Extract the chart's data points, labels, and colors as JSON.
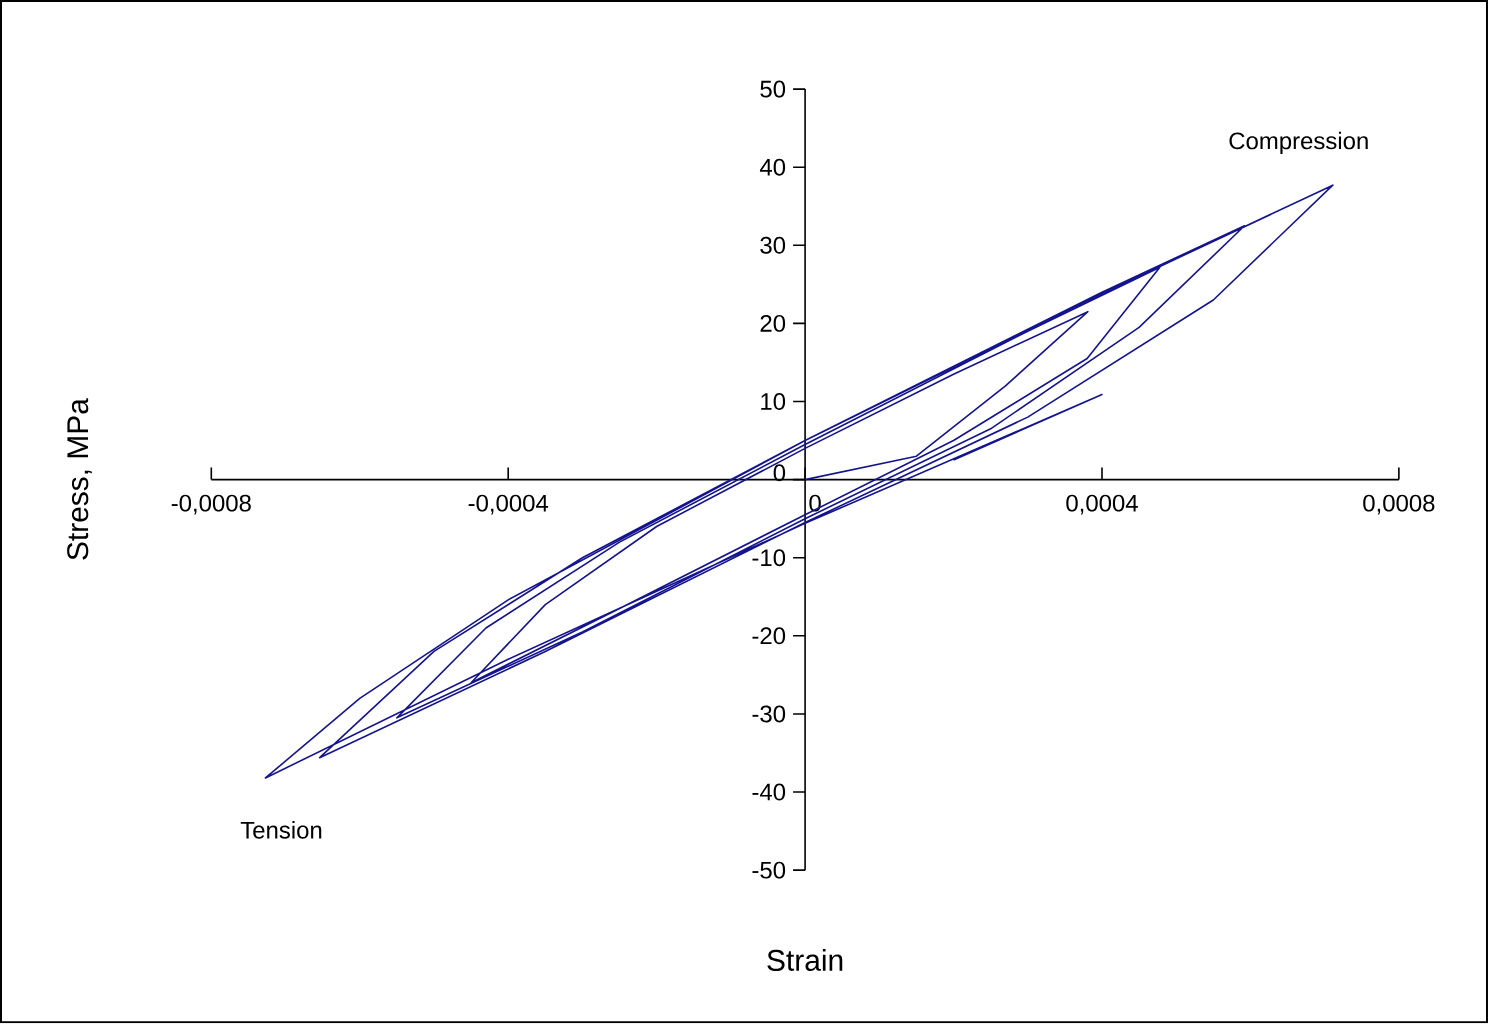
{
  "chart_data": {
    "type": "line",
    "xlabel": "Strain",
    "ylabel": "Stress, MPa",
    "xlim": [
      -0.0008,
      0.0008
    ],
    "ylim": [
      -50,
      50
    ],
    "xticks": [
      {
        "value": -0.0008,
        "label": "-0,0008"
      },
      {
        "value": -0.0004,
        "label": "-0,0004"
      },
      0,
      {
        "value": 0.0004,
        "label": "0,0004"
      },
      {
        "value": 0.0008,
        "label": "0,0008"
      }
    ],
    "yticks": [
      -50,
      -40,
      -30,
      -20,
      -10,
      0,
      10,
      20,
      30,
      40,
      50
    ],
    "marker": "none",
    "annotations": [
      {
        "text": "Compression",
        "x": 0.000711,
        "y": 37.7
      },
      {
        "text": "Tension",
        "x": -0.000727,
        "y": -38.2
      }
    ],
    "series": [
      {
        "color": "#141490",
        "x": [
          0,
          0.00015,
          0.00027,
          0.000381,
          0.0002,
          0,
          -0.0002,
          -0.00035,
          -0.00045,
          -0.00025,
          0,
          0.0002,
          0.00038,
          0.000478,
          0.0003,
          0,
          -0.00025,
          -0.00043,
          -0.00055,
          -0.0003,
          0,
          0.00025,
          0.00045,
          0.000592,
          0.0004,
          0,
          -0.0003,
          -0.0005,
          -0.000654,
          -0.00035,
          0,
          0.0003,
          0.00055,
          0.000711,
          0.0004,
          0,
          -0.0004,
          -0.0006,
          -0.000727,
          -0.0004,
          0,
          0.0004,
          0.0002
        ],
        "values": [
          0,
          3,
          12,
          21.5,
          13.5,
          4,
          -6,
          -16,
          -26,
          -16.5,
          -4.5,
          5,
          15.5,
          27.2,
          19,
          4.5,
          -8,
          -19,
          -30.5,
          -19.5,
          -5,
          6.5,
          19.5,
          32.5,
          24,
          5,
          -10,
          -22,
          -35.6,
          -22,
          -5.5,
          8,
          23,
          37.7,
          23.8,
          5,
          -15.4,
          -28,
          -38.2,
          -23,
          -5.6,
          10.9,
          2.5
        ]
      }
    ]
  }
}
